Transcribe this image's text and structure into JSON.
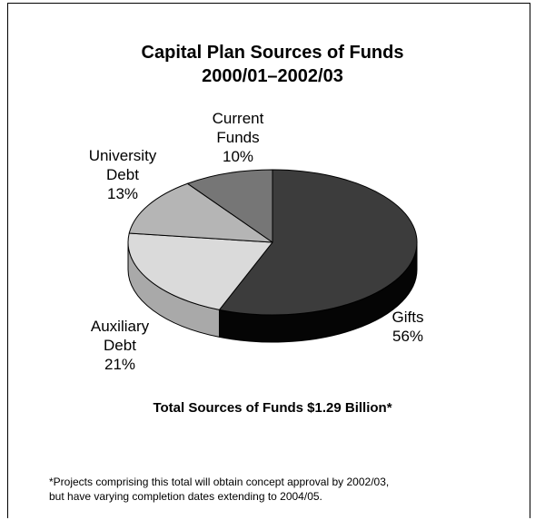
{
  "chart_data": {
    "type": "pie",
    "title_line1": "Capital Plan Sources of Funds",
    "title_line2": "2000/01–2002/03",
    "categories": [
      "Gifts",
      "Auxiliary Debt",
      "University Debt",
      "Current Funds"
    ],
    "values": [
      56,
      21,
      13,
      10
    ],
    "label_lines": [
      [
        "Gifts",
        "56%"
      ],
      [
        "Auxiliary",
        "Debt",
        "21%"
      ],
      [
        "University",
        "Debt",
        "13%"
      ],
      [
        "Current",
        "Funds",
        "10%"
      ]
    ],
    "colors": [
      "#3c3c3c",
      "#dadada",
      "#b5b5b5",
      "#767676"
    ],
    "side_colors": [
      "#050505",
      "#a9a9a9",
      "#8f8f8f",
      "#555555"
    ],
    "legend": "none",
    "grid": false
  },
  "summary": {
    "total_text": "Total Sources of Funds $1.29 Billion*"
  },
  "footnote": {
    "line1": "*Projects comprising this total will obtain concept approval by 2002/03,",
    "line2": "but have varying completion dates extending to 2004/05."
  }
}
